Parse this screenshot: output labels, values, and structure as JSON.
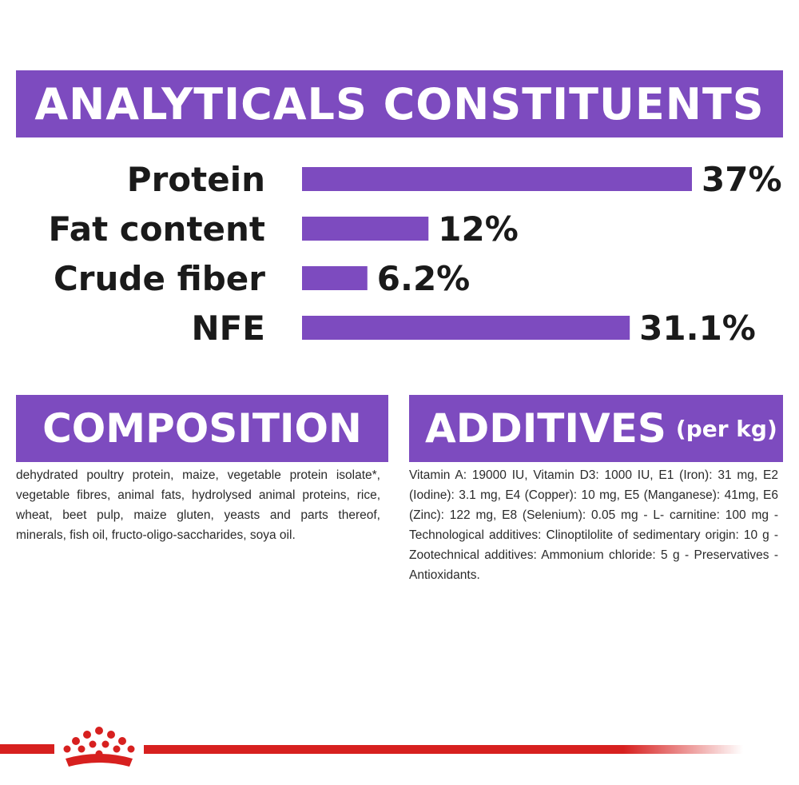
{
  "header": {
    "title": "ANALYTICALS CONSTITUENTS"
  },
  "chart_data": {
    "type": "bar",
    "orientation": "horizontal",
    "title": "ANALYTICALS CONSTITUENTS",
    "categories": [
      "Protein",
      "Fat content",
      "Crude fiber",
      "NFE"
    ],
    "values": [
      37,
      12,
      6.2,
      31.1
    ],
    "value_labels": [
      "37%",
      "12%",
      "6.2%",
      "31.1%"
    ],
    "unit": "%",
    "xlim": [
      0,
      37
    ],
    "grid": false,
    "legend": "none",
    "bar_color": "#7d4bbf"
  },
  "composition": {
    "title": "COMPOSITION",
    "text": "dehydrated poultry protein, maize, vegetable protein isolate*, vegetable fibres, animal fats, hydrolysed animal proteins, rice, wheat, beet pulp, maize gluten, yeasts and parts thereof, minerals, fish oil, fructo-oligo-saccharides, soya oil."
  },
  "additives": {
    "title": "ADDITIVES",
    "subtitle": "(per kg)",
    "text": "Vitamin A: 19000 IU, Vitamin D3: 1000 IU, E1 (Iron): 31 mg, E2 (Iodine): 3.1 mg, E4 (Copper): 10 mg, E5 (Manganese): 41mg, E6 (Zinc): 122 mg, E8 (Selenium): 0.05 mg - L- carnitine: 100 mg - Technological additives: Clinoptilolite of sedimentary origin: 10 g -Zootechnical additives: Ammonium chloride: 5 g - Preservatives - Antioxidants."
  },
  "footer": {
    "logo_icon": "crown-logo-icon",
    "accent_color": "#d7201f"
  },
  "colors": {
    "accent": "#7d4bbf",
    "brand_red": "#d7201f"
  }
}
